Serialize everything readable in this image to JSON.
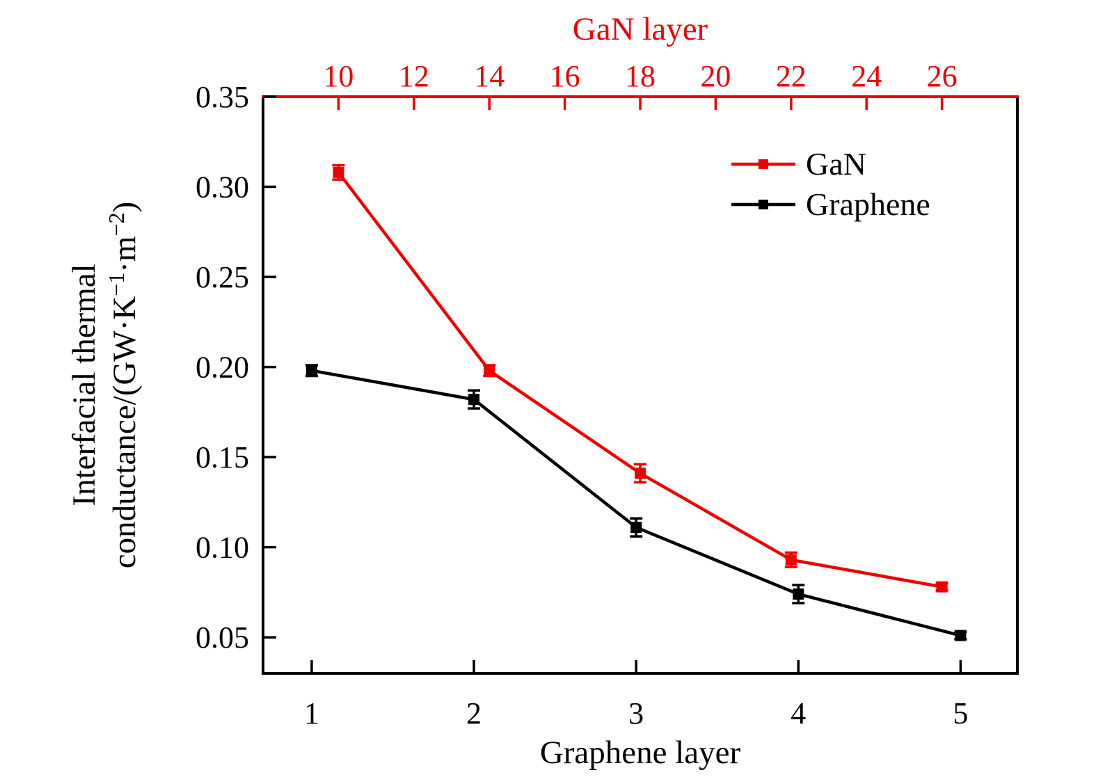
{
  "figure": {
    "background": "#ffffff"
  },
  "chart_data": {
    "type": "line",
    "title": "",
    "grid": false,
    "top_axis": {
      "label": "GaN layer",
      "color": "#ee0000",
      "ticks": [
        10,
        12,
        14,
        16,
        18,
        20,
        22,
        24,
        26
      ],
      "min": 8,
      "max": 28
    },
    "bottom_axis": {
      "label": "Graphene layer",
      "color": "#000000",
      "ticks": [
        1,
        2,
        3,
        4,
        5
      ],
      "min": 0.7,
      "max": 5.35
    },
    "y_axis": {
      "color": "#000000",
      "label_lines": [
        [
          {
            "t": "Interfacial thermal"
          }
        ],
        [
          {
            "t": "conductance/(GW·K"
          },
          {
            "sup": "−1"
          },
          {
            "t": "·m"
          },
          {
            "sup": "−2"
          },
          {
            "t": ")"
          }
        ]
      ],
      "label_plain": "Interfacial thermal conductance/(GW·K⁻¹·m⁻²)",
      "tick_labels": [
        "0.05",
        "0.10",
        "0.15",
        "0.20",
        "0.25",
        "0.30",
        "0.35"
      ],
      "min": 0.03,
      "max": 0.35
    },
    "series": [
      {
        "name": "GaN",
        "color": "#ee0000",
        "axis": "top",
        "marker": "square",
        "x": [
          10,
          14,
          18,
          22,
          26
        ],
        "y": [
          0.308,
          0.198,
          0.141,
          0.093,
          0.078
        ],
        "yerr": [
          0.004,
          0.003,
          0.005,
          0.004,
          0.002
        ]
      },
      {
        "name": "Graphene",
        "color": "#000000",
        "axis": "bottom",
        "marker": "square",
        "x": [
          1,
          2,
          3,
          4,
          5
        ],
        "y": [
          0.198,
          0.182,
          0.111,
          0.074,
          0.051
        ],
        "yerr": [
          0.003,
          0.005,
          0.005,
          0.005,
          0.002
        ]
      }
    ],
    "legend": {
      "position": "upper-right",
      "entries": [
        "GaN",
        "Graphene"
      ]
    }
  }
}
